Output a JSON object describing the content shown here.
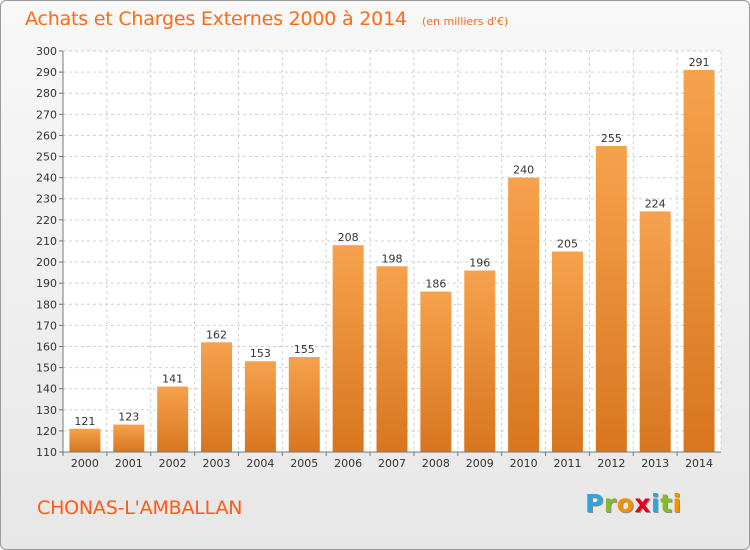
{
  "title": "Achats et Charges Externes 2000 à 2014",
  "unit": "(en milliers d'€)",
  "town": "CHONAS-L'AMBALLAN",
  "logo": {
    "letters": [
      "P",
      "r",
      "o",
      "x",
      "i",
      "t",
      "i"
    ],
    "colors": [
      "#2aa7e0",
      "#86b92b",
      "#f39200",
      "#e2001a",
      "#2aa7e0",
      "#86b92b",
      "#f39200"
    ]
  },
  "colors": {
    "title": "#ff6a13",
    "bar_light": "#f6a24d",
    "bar_dark": "#d8761f",
    "grid": "#d0d0d0",
    "axis_text": "#333333"
  },
  "chart_data": {
    "type": "bar",
    "categories": [
      "2000",
      "2001",
      "2002",
      "2003",
      "2004",
      "2005",
      "2006",
      "2007",
      "2008",
      "2009",
      "2010",
      "2011",
      "2012",
      "2013",
      "2014"
    ],
    "values": [
      121,
      123,
      141,
      162,
      153,
      155,
      208,
      198,
      186,
      196,
      240,
      205,
      255,
      224,
      291
    ],
    "ylim": [
      110,
      300
    ],
    "ytick_step": 10,
    "grid": true,
    "data_labels": true
  }
}
